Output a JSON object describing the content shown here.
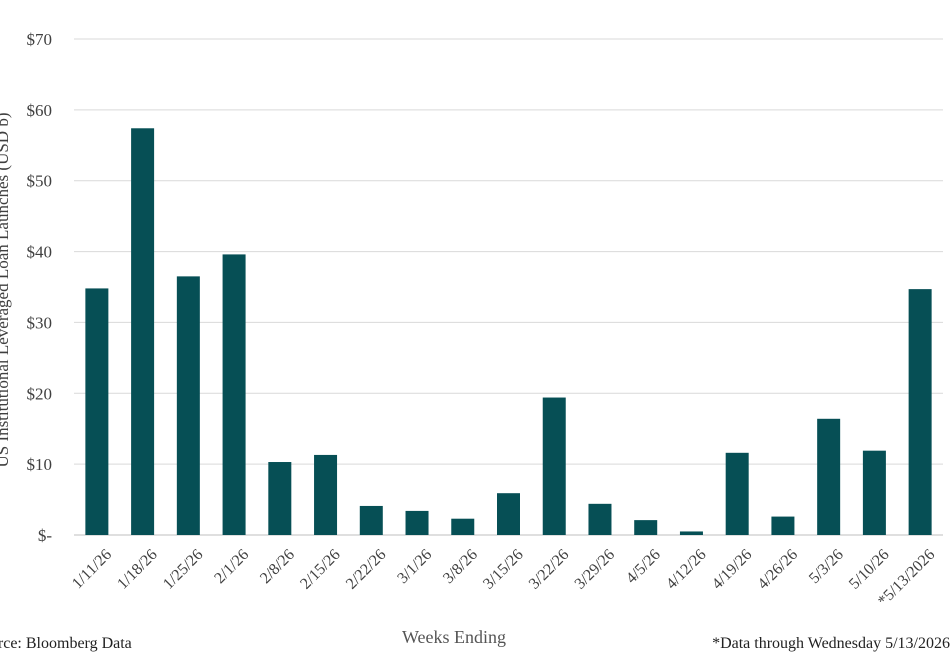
{
  "chart_data": {
    "type": "bar",
    "ylabel": "US Institutional Leveraged Loan Launches (USD b)",
    "xlabel": "Weeks Ending",
    "categories": [
      "1/11/26",
      "1/18/26",
      "1/25/26",
      "2/1/26",
      "2/8/26",
      "2/15/26",
      "2/22/26",
      "3/1/26",
      "3/8/26",
      "3/15/26",
      "3/22/26",
      "3/29/26",
      "4/5/26",
      "4/12/26",
      "4/19/26",
      "4/26/26",
      "5/3/26",
      "5/10/26",
      "*5/13/2026"
    ],
    "values": [
      34.8,
      57.4,
      36.5,
      39.6,
      10.3,
      11.3,
      4.1,
      3.4,
      2.3,
      5.9,
      19.4,
      4.4,
      2.1,
      0.5,
      11.6,
      2.6,
      16.4,
      11.9,
      34.7
    ],
    "ylim": [
      0,
      70
    ],
    "yticks": [
      0,
      10,
      20,
      30,
      40,
      50,
      60,
      70
    ],
    "ytick_labels": [
      "$-",
      "$10",
      "$20",
      "$30",
      "$40",
      "$50",
      "$60",
      "$70"
    ],
    "grid": true,
    "bar_color": "#064f55",
    "grid_color": "#d9d9d9"
  },
  "footer": {
    "source": "Source: Bloomberg Data",
    "note": "*Data through Wednesday 5/13/2026"
  }
}
